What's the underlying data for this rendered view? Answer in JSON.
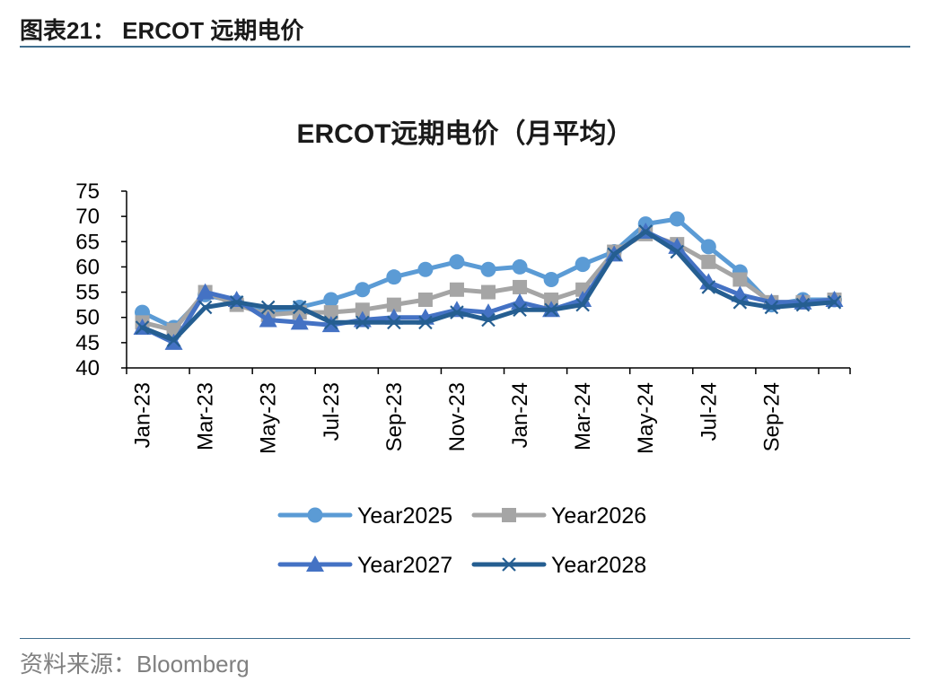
{
  "header": {
    "title": "图表21：  ERCOT 远期电价"
  },
  "footer": {
    "source": "资料来源：Bloomberg"
  },
  "chart_data": {
    "type": "line",
    "title": "ERCOT远期电价（月平均）",
    "xlabel": "",
    "ylabel": "",
    "ylim": [
      40,
      75
    ],
    "yticks": [
      40,
      45,
      50,
      55,
      60,
      65,
      70,
      75
    ],
    "categories": [
      "Jan-23",
      "Feb-23",
      "Mar-23",
      "Apr-23",
      "May-23",
      "Jun-23",
      "Jul-23",
      "Aug-23",
      "Sep-23",
      "Oct-23",
      "Nov-23",
      "Dec-23",
      "Jan-24",
      "Feb-24",
      "Mar-24",
      "Apr-24",
      "May-24",
      "Jun-24",
      "Jul-24",
      "Aug-24",
      "Sep-24",
      "Oct-24",
      "Nov-24"
    ],
    "tick_labels": [
      "Jan-23",
      "",
      "Mar-23",
      "",
      "May-23",
      "",
      "Jul-23",
      "",
      "Sep-23",
      "",
      "Nov-23",
      "",
      "Jan-24",
      "",
      "Mar-24",
      "",
      "May-24",
      "",
      "Jul-24",
      "",
      "Sep-24",
      "",
      ""
    ],
    "grid": false,
    "legend_position": "bottom",
    "series": [
      {
        "name": "Year2025",
        "color": "#5b9bd5",
        "marker": "circle",
        "values": [
          51,
          48,
          54.5,
          53,
          51,
          52,
          53.5,
          55.5,
          58,
          59.5,
          61,
          59.5,
          60,
          57.5,
          60.5,
          63,
          68.5,
          69.5,
          64,
          59,
          52.5,
          53.5,
          53.5
        ]
      },
      {
        "name": "Year2026",
        "color": "#a5a5a5",
        "marker": "square",
        "values": [
          49,
          47.5,
          55,
          52.5,
          50.5,
          51,
          51,
          51.5,
          52.5,
          53.5,
          55.5,
          55,
          56,
          53.5,
          55.5,
          63,
          66.5,
          64.5,
          61,
          57.5,
          53,
          53,
          53.5
        ]
      },
      {
        "name": "Year2027",
        "color": "#4472c4",
        "marker": "triangle",
        "values": [
          48,
          45,
          55,
          53.5,
          49.5,
          49,
          48.5,
          49.5,
          50,
          50,
          51.5,
          51,
          53,
          51.5,
          53.5,
          62.5,
          67,
          64,
          57,
          54.5,
          53,
          53,
          53.5
        ]
      },
      {
        "name": "Year2028",
        "color": "#255e91",
        "marker": "x",
        "values": [
          48,
          45.5,
          52,
          53,
          52,
          52,
          49,
          49,
          49,
          49,
          51,
          49.5,
          51.5,
          51.5,
          52.5,
          62.5,
          67,
          63,
          56,
          53,
          52,
          52.5,
          53
        ]
      }
    ]
  }
}
